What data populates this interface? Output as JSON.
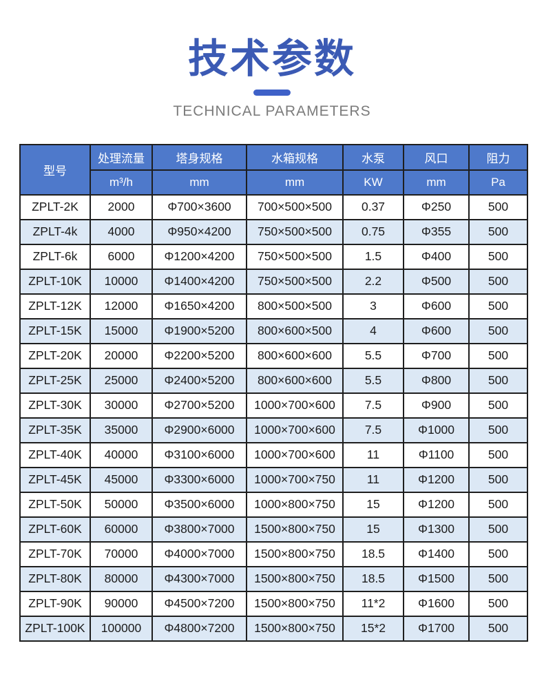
{
  "header": {
    "title_zh": "技术参数",
    "title_en": "TECHNICAL PARAMETERS"
  },
  "theme": {
    "title_color": "#3b5ab4",
    "divider_color": "#3e61c8",
    "subtitle_color": "#7b7b7b",
    "table_header_bg": "#4e79cb",
    "table_header_text": "#ffffff",
    "row_alt_bg": "#dce8f5",
    "border_color": "#1e1e1e"
  },
  "table": {
    "columns": [
      {
        "label": "型号",
        "unit": ""
      },
      {
        "label": "处理流量",
        "unit": "m³/h"
      },
      {
        "label": "塔身规格",
        "unit": "mm"
      },
      {
        "label": "水箱规格",
        "unit": "mm"
      },
      {
        "label": "水泵",
        "unit": "KW"
      },
      {
        "label": "风口",
        "unit": "mm"
      },
      {
        "label": "阻力",
        "unit": "Pa"
      }
    ],
    "rows": [
      [
        "ZPLT-2K",
        "2000",
        "Φ700×3600",
        "700×500×500",
        "0.37",
        "Φ250",
        "500"
      ],
      [
        "ZPLT-4k",
        "4000",
        "Φ950×4200",
        "750×500×500",
        "0.75",
        "Φ355",
        "500"
      ],
      [
        "ZPLT-6k",
        "6000",
        "Φ1200×4200",
        "750×500×500",
        "1.5",
        "Φ400",
        "500"
      ],
      [
        "ZPLT-10K",
        "10000",
        "Φ1400×4200",
        "750×500×500",
        "2.2",
        "Φ500",
        "500"
      ],
      [
        "ZPLT-12K",
        "12000",
        "Φ1650×4200",
        "800×500×500",
        "3",
        "Φ600",
        "500"
      ],
      [
        "ZPLT-15K",
        "15000",
        "Φ1900×5200",
        "800×600×500",
        "4",
        "Φ600",
        "500"
      ],
      [
        "ZPLT-20K",
        "20000",
        "Φ2200×5200",
        "800×600×600",
        "5.5",
        "Φ700",
        "500"
      ],
      [
        "ZPLT-25K",
        "25000",
        "Φ2400×5200",
        "800×600×600",
        "5.5",
        "Φ800",
        "500"
      ],
      [
        "ZPLT-30K",
        "30000",
        "Φ2700×5200",
        "1000×700×600",
        "7.5",
        "Φ900",
        "500"
      ],
      [
        "ZPLT-35K",
        "35000",
        "Φ2900×6000",
        "1000×700×600",
        "7.5",
        "Φ1000",
        "500"
      ],
      [
        "ZPLT-40K",
        "40000",
        "Φ3100×6000",
        "1000×700×600",
        "11",
        "Φ1100",
        "500"
      ],
      [
        "ZPLT-45K",
        "45000",
        "Φ3300×6000",
        "1000×700×750",
        "11",
        "Φ1200",
        "500"
      ],
      [
        "ZPLT-50K",
        "50000",
        "Φ3500×6000",
        "1000×800×750",
        "15",
        "Φ1200",
        "500"
      ],
      [
        "ZPLT-60K",
        "60000",
        "Φ3800×7000",
        "1500×800×750",
        "15",
        "Φ1300",
        "500"
      ],
      [
        "ZPLT-70K",
        "70000",
        "Φ4000×7000",
        "1500×800×750",
        "18.5",
        "Φ1400",
        "500"
      ],
      [
        "ZPLT-80K",
        "80000",
        "Φ4300×7000",
        "1500×800×750",
        "18.5",
        "Φ1500",
        "500"
      ],
      [
        "ZPLT-90K",
        "90000",
        "Φ4500×7200",
        "1500×800×750",
        "11*2",
        "Φ1600",
        "500"
      ],
      [
        "ZPLT-100K",
        "100000",
        "Φ4800×7200",
        "1500×800×750",
        "15*2",
        "Φ1700",
        "500"
      ]
    ]
  }
}
